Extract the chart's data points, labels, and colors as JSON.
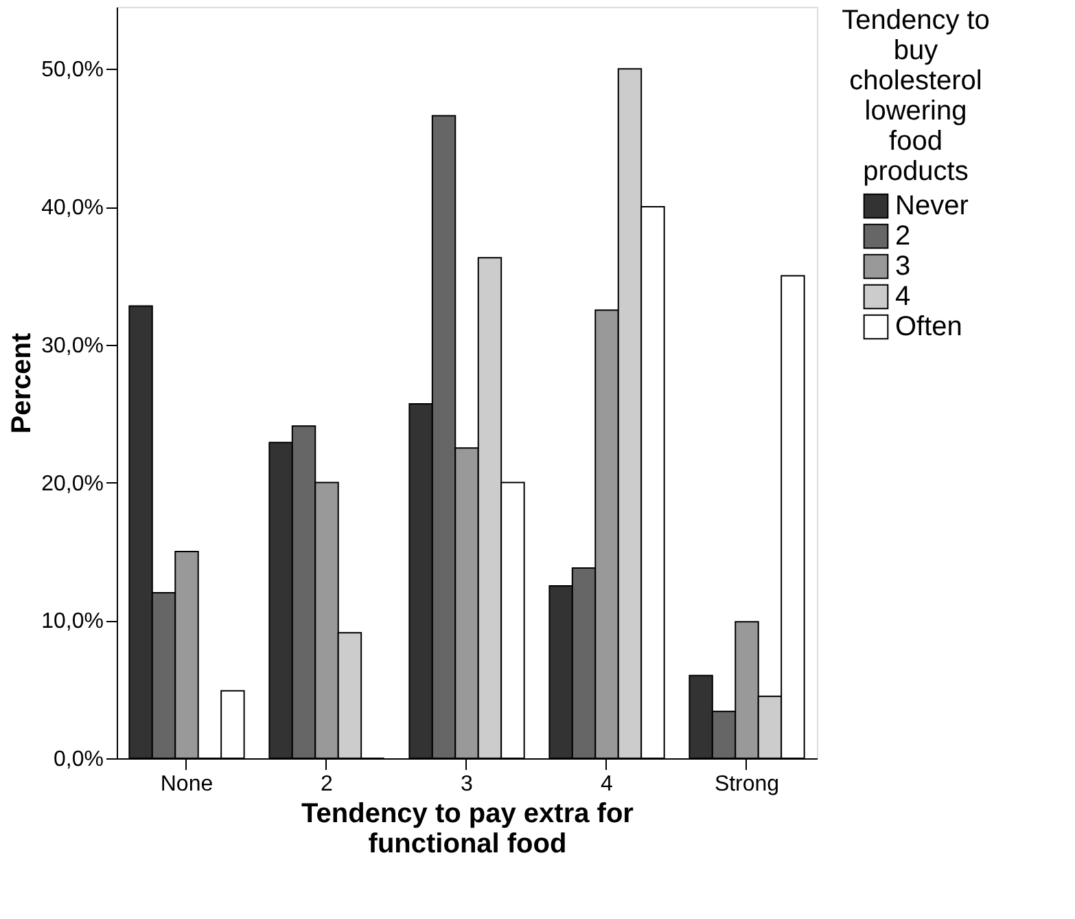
{
  "chart_data": {
    "type": "bar",
    "xlabel": "Tendency to pay extra for functional food",
    "ylabel": "Percent",
    "legend_title": "Tendency to buy cholesterol lowering food products",
    "categories": [
      "None",
      "2",
      "3",
      "4",
      "Strong"
    ],
    "series": [
      {
        "name": "Never",
        "color": "#333333",
        "values": [
          32.8,
          22.9,
          25.7,
          12.5,
          6.0
        ]
      },
      {
        "name": "2",
        "color": "#666666",
        "values": [
          12.0,
          24.1,
          46.6,
          13.8,
          3.4
        ]
      },
      {
        "name": "3",
        "color": "#999999",
        "values": [
          15.0,
          20.0,
          22.5,
          32.5,
          9.9
        ]
      },
      {
        "name": "4",
        "color": "#cccccc",
        "values": [
          0,
          9.1,
          36.3,
          50.0,
          4.5
        ]
      },
      {
        "name": "Often",
        "color": "#ffffff",
        "values": [
          4.9,
          0,
          20.0,
          40.0,
          35.0
        ]
      }
    ],
    "ylim": [
      0,
      54.5
    ],
    "yticks": [
      {
        "value": 0,
        "label": "0,0%"
      },
      {
        "value": 10,
        "label": "10,0%"
      },
      {
        "value": 20,
        "label": "20,0%"
      },
      {
        "value": 30,
        "label": "30,0%"
      },
      {
        "value": 40,
        "label": "40,0%"
      },
      {
        "value": 50,
        "label": "50,0%"
      }
    ],
    "grid": false,
    "legend": "right"
  }
}
